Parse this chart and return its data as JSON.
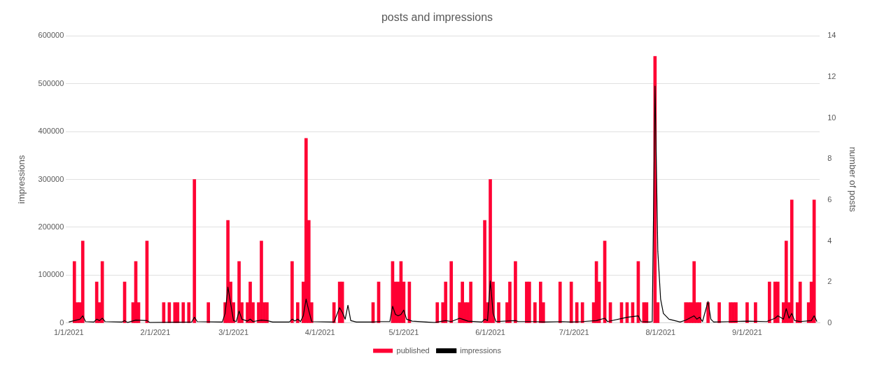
{
  "chart_data": {
    "type": "bar",
    "title": "posts and impressions",
    "ylabel": "impressions",
    "y2label": "number of posts",
    "xlim": [
      "2020-12-31",
      "2021-09-27"
    ],
    "xticks": [
      {
        "value": "2021-01-01",
        "label": "1/1/2021"
      },
      {
        "value": "2021-02-01",
        "label": "2/1/2021"
      },
      {
        "value": "2021-03-01",
        "label": "3/1/2021"
      },
      {
        "value": "2021-04-01",
        "label": "4/1/2021"
      },
      {
        "value": "2021-05-01",
        "label": "5/1/2021"
      },
      {
        "value": "2021-06-01",
        "label": "6/1/2021"
      },
      {
        "value": "2021-07-01",
        "label": "7/1/2021"
      },
      {
        "value": "2021-08-01",
        "label": "8/1/2021"
      },
      {
        "value": "2021-09-01",
        "label": "9/1/2021"
      }
    ],
    "ylim": [
      0,
      600000
    ],
    "yticks": [
      0,
      100000,
      200000,
      300000,
      400000,
      500000,
      600000
    ],
    "y2lim": [
      0,
      14
    ],
    "y2ticks": [
      0,
      2,
      4,
      6,
      8,
      10,
      12,
      14
    ],
    "grid": "y",
    "legend": "bottom",
    "series": [
      {
        "name": "published",
        "axis": "y2",
        "color": "#ff0033",
        "x": [
          "2021-01-03",
          "2021-01-04",
          "2021-01-05",
          "2021-01-06",
          "2021-01-11",
          "2021-01-12",
          "2021-01-13",
          "2021-01-21",
          "2021-01-24",
          "2021-01-25",
          "2021-01-26",
          "2021-01-29",
          "2021-02-04",
          "2021-02-06",
          "2021-02-08",
          "2021-02-09",
          "2021-02-11",
          "2021-02-13",
          "2021-02-15",
          "2021-02-20",
          "2021-02-26",
          "2021-02-27",
          "2021-02-28",
          "2021-03-01",
          "2021-03-03",
          "2021-03-04",
          "2021-03-06",
          "2021-03-07",
          "2021-03-08",
          "2021-03-10",
          "2021-03-11",
          "2021-03-12",
          "2021-03-13",
          "2021-03-22",
          "2021-03-24",
          "2021-03-26",
          "2021-03-27",
          "2021-03-28",
          "2021-03-29",
          "2021-04-06",
          "2021-04-08",
          "2021-04-09",
          "2021-04-20",
          "2021-04-22",
          "2021-04-27",
          "2021-04-28",
          "2021-04-29",
          "2021-04-30",
          "2021-05-01",
          "2021-05-03",
          "2021-05-13",
          "2021-05-15",
          "2021-05-16",
          "2021-05-18",
          "2021-05-21",
          "2021-05-22",
          "2021-05-23",
          "2021-05-24",
          "2021-05-25",
          "2021-05-30",
          "2021-05-31",
          "2021-06-01",
          "2021-06-02",
          "2021-06-04",
          "2021-06-07",
          "2021-06-08",
          "2021-06-10",
          "2021-06-14",
          "2021-06-15",
          "2021-06-17",
          "2021-06-19",
          "2021-06-20",
          "2021-06-26",
          "2021-06-30",
          "2021-07-02",
          "2021-07-04",
          "2021-07-08",
          "2021-07-09",
          "2021-07-10",
          "2021-07-12",
          "2021-07-14",
          "2021-07-18",
          "2021-07-20",
          "2021-07-22",
          "2021-07-24",
          "2021-07-26",
          "2021-07-27",
          "2021-07-30",
          "2021-07-31",
          "2021-08-10",
          "2021-08-11",
          "2021-08-12",
          "2021-08-13",
          "2021-08-14",
          "2021-08-15",
          "2021-08-18",
          "2021-08-22",
          "2021-08-26",
          "2021-08-27",
          "2021-08-28",
          "2021-09-01",
          "2021-09-04",
          "2021-09-09",
          "2021-09-11",
          "2021-09-12",
          "2021-09-14",
          "2021-09-15",
          "2021-09-16",
          "2021-09-17",
          "2021-09-19",
          "2021-09-20",
          "2021-09-23",
          "2021-09-24",
          "2021-09-25"
        ],
        "values": [
          3,
          1,
          1,
          4,
          2,
          1,
          3,
          2,
          1,
          3,
          1,
          4,
          1,
          1,
          1,
          1,
          1,
          1,
          7,
          1,
          1,
          5,
          2,
          1,
          3,
          1,
          1,
          2,
          1,
          1,
          4,
          1,
          1,
          3,
          1,
          2,
          9,
          5,
          1,
          1,
          2,
          2,
          1,
          2,
          3,
          2,
          2,
          3,
          2,
          2,
          1,
          1,
          2,
          3,
          1,
          2,
          1,
          1,
          2,
          5,
          1,
          7,
          2,
          1,
          1,
          2,
          3,
          2,
          2,
          1,
          2,
          1,
          2,
          2,
          1,
          1,
          1,
          3,
          2,
          4,
          1,
          1,
          1,
          1,
          3,
          1,
          1,
          13,
          1,
          1,
          1,
          1,
          3,
          1,
          1,
          1,
          1,
          1,
          1,
          1,
          1,
          1,
          2,
          2,
          2,
          1,
          4,
          1,
          6,
          1,
          2,
          1,
          2,
          6
        ]
      },
      {
        "name": "impressions",
        "type": "line",
        "axis": "y",
        "color": "#000000",
        "marker": "none",
        "x": [
          "2021-01-01",
          "2021-01-03",
          "2021-01-05",
          "2021-01-06",
          "2021-01-07",
          "2021-01-10",
          "2021-01-11",
          "2021-01-12",
          "2021-01-13",
          "2021-01-14",
          "2021-01-20",
          "2021-01-21",
          "2021-01-22",
          "2021-01-25",
          "2021-01-29",
          "2021-01-30",
          "2021-02-14",
          "2021-02-15",
          "2021-02-16",
          "2021-02-25",
          "2021-02-26",
          "2021-02-27",
          "2021-02-28",
          "2021-03-01",
          "2021-03-02",
          "2021-03-03",
          "2021-03-04",
          "2021-03-06",
          "2021-03-07",
          "2021-03-08",
          "2021-03-11",
          "2021-03-13",
          "2021-03-15",
          "2021-03-21",
          "2021-03-22",
          "2021-03-23",
          "2021-03-24",
          "2021-03-25",
          "2021-03-26",
          "2021-03-27",
          "2021-03-28",
          "2021-03-29",
          "2021-04-06",
          "2021-04-08",
          "2021-04-09",
          "2021-04-10",
          "2021-04-11",
          "2021-04-12",
          "2021-04-14",
          "2021-04-20",
          "2021-04-22",
          "2021-04-26",
          "2021-04-27",
          "2021-04-28",
          "2021-04-29",
          "2021-04-30",
          "2021-05-01",
          "2021-05-02",
          "2021-05-04",
          "2021-05-12",
          "2021-05-16",
          "2021-05-18",
          "2021-05-21",
          "2021-05-22",
          "2021-05-24",
          "2021-05-29",
          "2021-05-30",
          "2021-05-31",
          "2021-06-01",
          "2021-06-02",
          "2021-06-03",
          "2021-06-10",
          "2021-06-11",
          "2021-06-17",
          "2021-06-20",
          "2021-06-27",
          "2021-06-30",
          "2021-07-04",
          "2021-07-09",
          "2021-07-12",
          "2021-07-13",
          "2021-07-20",
          "2021-07-24",
          "2021-07-25",
          "2021-07-28",
          "2021-07-29",
          "2021-07-30",
          "2021-07-31",
          "2021-08-01",
          "2021-08-02",
          "2021-08-04",
          "2021-08-08",
          "2021-08-10",
          "2021-08-13",
          "2021-08-14",
          "2021-08-15",
          "2021-08-16",
          "2021-08-18",
          "2021-08-19",
          "2021-08-20",
          "2021-08-26",
          "2021-09-01",
          "2021-09-08",
          "2021-09-11",
          "2021-09-12",
          "2021-09-14",
          "2021-09-15",
          "2021-09-16",
          "2021-09-17",
          "2021-09-18",
          "2021-09-20",
          "2021-09-24",
          "2021-09-25",
          "2021-09-26"
        ],
        "values": [
          2000,
          5000,
          8000,
          15000,
          3000,
          2000,
          8000,
          5000,
          10000,
          3000,
          2000,
          5000,
          1000,
          6000,
          5000,
          1000,
          2000,
          12000,
          3000,
          2000,
          20000,
          75000,
          40000,
          5000,
          3000,
          25000,
          8000,
          4000,
          8000,
          3000,
          6000,
          5000,
          2000,
          2000,
          8000,
          4000,
          8000,
          3000,
          15000,
          50000,
          25000,
          3000,
          2000,
          32000,
          22000,
          8000,
          37000,
          5000,
          2000,
          2000,
          3000,
          3000,
          35000,
          18000,
          15000,
          18000,
          27000,
          8000,
          4000,
          1000,
          5000,
          3000,
          10000,
          8000,
          4000,
          2000,
          8000,
          5000,
          88000,
          20000,
          3000,
          5000,
          3000,
          3000,
          2000,
          3000,
          2000,
          3000,
          5000,
          10000,
          3000,
          12000,
          15000,
          3000,
          2000,
          3000,
          495000,
          150000,
          50000,
          20000,
          8000,
          2000,
          6000,
          15000,
          8000,
          12000,
          3000,
          45000,
          8000,
          2000,
          3000,
          4000,
          3000,
          10000,
          15000,
          8000,
          30000,
          10000,
          20000,
          5000,
          3000,
          5000,
          15000,
          3000
        ]
      }
    ]
  }
}
